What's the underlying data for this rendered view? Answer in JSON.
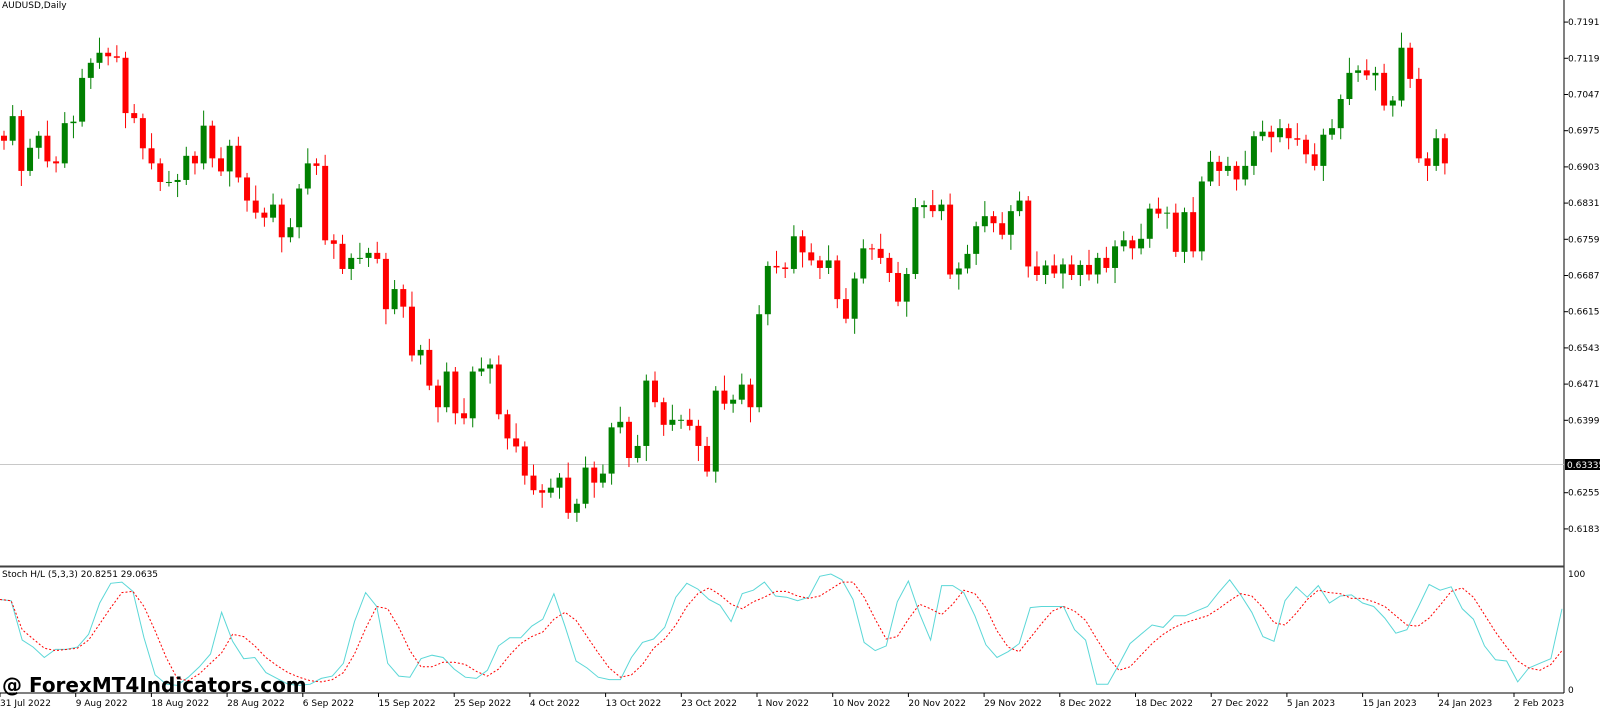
{
  "colors": {
    "bull": "#008000",
    "bear": "#ff0000",
    "wick": "#000000",
    "background": "#ffffff",
    "axis": "#000000",
    "stoch_main": "#5bd7d7",
    "stoch_signal": "#ff0000",
    "price_line": "#c8c8c8"
  },
  "watermark": "@ ForexMT4Indicators.com",
  "chart_data": [
    {
      "type": "candlestick",
      "title": "AUDUSD,Daily",
      "ylim": [
        0.6151,
        0.7221
      ],
      "y_ticks": [
        "0.71910",
        "0.71190",
        "0.70470",
        "0.69750",
        "0.69030",
        "0.68310",
        "0.67590",
        "0.66870",
        "0.66150",
        "0.65430",
        "0.64710",
        "0.63990",
        "0.62550",
        "0.61830"
      ],
      "current_price": "0.63335",
      "x_ticks": [
        "31 Jul 2022",
        "9 Aug 2022",
        "18 Aug 2022",
        "28 Aug 2022",
        "6 Sep 2022",
        "15 Sep 2022",
        "25 Sep 2022",
        "4 Oct 2022",
        "13 Oct 2022",
        "23 Oct 2022",
        "1 Nov 2022",
        "10 Nov 2022",
        "20 Nov 2022",
        "29 Nov 2022",
        "8 Dec 2022",
        "18 Dec 2022",
        "27 Dec 2022",
        "5 Jan 2023",
        "15 Jan 2023",
        "24 Jan 2023",
        "2 Feb 2023"
      ],
      "close_prices": [
        0.6955,
        0.7004,
        0.6895,
        0.6941,
        0.6965,
        0.6914,
        0.691,
        0.699,
        0.6993,
        0.708,
        0.711,
        0.713,
        0.7123,
        0.712,
        0.701,
        0.7,
        0.694,
        0.691,
        0.6873,
        0.6873,
        0.6877,
        0.6925,
        0.691,
        0.6985,
        0.692,
        0.6894,
        0.6945,
        0.6882,
        0.6836,
        0.6812,
        0.6802,
        0.6828,
        0.6763,
        0.6783,
        0.686,
        0.691,
        0.6905,
        0.6757,
        0.675,
        0.67,
        0.6722,
        0.6722,
        0.6732,
        0.672,
        0.662,
        0.666,
        0.6625,
        0.6528,
        0.6539,
        0.6468,
        0.6425,
        0.6496,
        0.6413,
        0.6403,
        0.6496,
        0.6502,
        0.651,
        0.6411,
        0.6363,
        0.6347,
        0.6289,
        0.626,
        0.6255,
        0.6265,
        0.6285,
        0.6215,
        0.6233,
        0.6305,
        0.6275,
        0.6293,
        0.6385,
        0.6396,
        0.6324,
        0.6348,
        0.6478,
        0.6435,
        0.639,
        0.64,
        0.64,
        0.6388,
        0.6348,
        0.6297,
        0.6458,
        0.6432,
        0.644,
        0.647,
        0.6425,
        0.661,
        0.6706,
        0.6703,
        0.67,
        0.6765,
        0.6733,
        0.6717,
        0.6702,
        0.6717,
        0.664,
        0.6601,
        0.6681,
        0.6741,
        0.674,
        0.6722,
        0.6692,
        0.6635,
        0.669,
        0.6823,
        0.6827,
        0.6815,
        0.6828,
        0.6689,
        0.6701,
        0.673,
        0.6785,
        0.6805,
        0.6791,
        0.6768,
        0.6815,
        0.6836,
        0.6705,
        0.6688,
        0.6707,
        0.6691,
        0.6709,
        0.6688,
        0.6708,
        0.6689,
        0.6722,
        0.6702,
        0.6745,
        0.6757,
        0.6741,
        0.676,
        0.682,
        0.681,
        0.6812,
        0.6734,
        0.6813,
        0.6735,
        0.6874,
        0.6913,
        0.6895,
        0.6905,
        0.6878,
        0.6905,
        0.6964,
        0.6973,
        0.6962,
        0.698,
        0.696,
        0.6957,
        0.6928,
        0.6905,
        0.6967,
        0.698,
        0.7038,
        0.709,
        0.7095,
        0.7085,
        0.709,
        0.7025,
        0.7035,
        0.714,
        0.7078,
        0.692,
        0.6905,
        0.696,
        0.691
      ]
    },
    {
      "type": "line",
      "title": "Stoch H/L (5,3,3) 20.8251 29.0635",
      "ylim": [
        0,
        100
      ],
      "y_ticks": [
        "100",
        "0"
      ],
      "series": [
        {
          "color": "#5bd7d7",
          "values": [
            78,
            77,
            43,
            37,
            28,
            35,
            35,
            37,
            48,
            75,
            92,
            93,
            85,
            45,
            13,
            5,
            4,
            11,
            20,
            31,
            67,
            42,
            27,
            28,
            15,
            10,
            5,
            4,
            5,
            10,
            12,
            23,
            59,
            84,
            72,
            23,
            12,
            11,
            27,
            30,
            28,
            18,
            11,
            10,
            17,
            38,
            45,
            45,
            55,
            61,
            83,
            55,
            25,
            19,
            11,
            9,
            9,
            28,
            41,
            44,
            54,
            80,
            92,
            87,
            78,
            73,
            59,
            83,
            86,
            93,
            81,
            80,
            77,
            80,
            98,
            100,
            95,
            78,
            41,
            34,
            38,
            76,
            94,
            66,
            43,
            90,
            90,
            84,
            64,
            39,
            28,
            33,
            40,
            71,
            72,
            72,
            72,
            52,
            43,
            5,
            5,
            22,
            40,
            48,
            56,
            54,
            64,
            64,
            68,
            72,
            84,
            95,
            82,
            67,
            46,
            42,
            77,
            89,
            80,
            90,
            75,
            81,
            82,
            75,
            72,
            62,
            49,
            52,
            71,
            91,
            86,
            89,
            70,
            61,
            38,
            26,
            25,
            7,
            19,
            23,
            27,
            70
          ]
        },
        {
          "color": "#ff0000",
          "values": [
            78,
            77,
            52,
            44,
            36,
            34,
            35,
            36,
            43,
            57,
            71,
            84,
            85,
            72,
            51,
            28,
            10,
            8,
            14,
            23,
            32,
            48,
            46,
            38,
            28,
            21,
            15,
            11,
            8,
            7,
            9,
            15,
            31,
            53,
            72,
            70,
            54,
            34,
            20,
            20,
            24,
            24,
            22,
            16,
            12,
            18,
            30,
            40,
            46,
            50,
            61,
            67,
            60,
            46,
            32,
            19,
            11,
            13,
            22,
            36,
            44,
            56,
            72,
            83,
            88,
            82,
            74,
            70,
            76,
            80,
            85,
            85,
            81,
            79,
            81,
            87,
            93,
            93,
            80,
            61,
            44,
            46,
            61,
            74,
            70,
            65,
            74,
            86,
            83,
            71,
            51,
            37,
            33,
            45,
            57,
            68,
            72,
            68,
            60,
            44,
            29,
            17,
            20,
            30,
            40,
            48,
            54,
            58,
            61,
            64,
            70,
            77,
            83,
            81,
            71,
            58,
            56,
            66,
            78,
            86,
            84,
            83,
            79,
            79,
            76,
            72,
            64,
            56,
            55,
            62,
            73,
            85,
            88,
            80,
            65,
            50,
            37,
            25,
            19,
            17,
            22,
            34
          ]
        }
      ]
    }
  ]
}
